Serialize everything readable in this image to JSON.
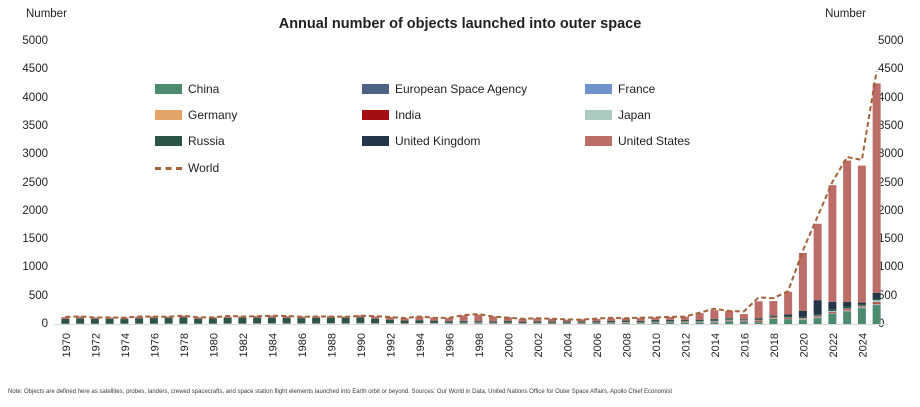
{
  "title": "Annual number of objects launched into outer space",
  "axis": {
    "left_label": "Number",
    "right_label": "Number"
  },
  "note": "Note: Objects are defined here as satellites, probes, landers, crewed spacecrafts, and space station flight elements launched into Earth orbit or beyond. Sources: Our World in Data, United Nations Office for Outer Space Affairs, Apollo Chief Economist",
  "chart_data": {
    "type": "bar",
    "stacked": true,
    "title": "Annual number of objects launched into outer space",
    "ylabel": "Number",
    "ylim": [
      0,
      5000
    ],
    "y_ticks": [
      0,
      500,
      1000,
      1500,
      2000,
      2500,
      3000,
      3500,
      4000,
      4500,
      5000
    ],
    "grid": false,
    "legend_position": "top",
    "x_tick_step": 2,
    "years": [
      1970,
      1971,
      1972,
      1973,
      1974,
      1975,
      1976,
      1977,
      1978,
      1979,
      1980,
      1981,
      1982,
      1983,
      1984,
      1985,
      1986,
      1987,
      1988,
      1989,
      1990,
      1991,
      1992,
      1993,
      1994,
      1995,
      1996,
      1997,
      1998,
      1999,
      2000,
      2001,
      2002,
      2003,
      2004,
      2005,
      2006,
      2007,
      2008,
      2009,
      2010,
      2011,
      2012,
      2013,
      2014,
      2015,
      2016,
      2017,
      2018,
      2019,
      2020,
      2021,
      2022,
      2023,
      2024,
      2025
    ],
    "series": [
      {
        "name": "China",
        "color": "#4d8b6f",
        "values": [
          0,
          1,
          0,
          0,
          0,
          2,
          1,
          2,
          1,
          0,
          0,
          2,
          1,
          2,
          3,
          1,
          2,
          2,
          4,
          1,
          5,
          1,
          2,
          1,
          2,
          3,
          4,
          6,
          6,
          4,
          5,
          3,
          5,
          8,
          8,
          6,
          10,
          10,
          15,
          8,
          20,
          20,
          25,
          20,
          25,
          45,
          35,
          30,
          90,
          80,
          70,
          105,
          180,
          220,
          280,
          330
        ]
      },
      {
        "name": "European Space Agency",
        "color": "#4e6285",
        "values": [
          0,
          0,
          0,
          0,
          0,
          0,
          0,
          0,
          0,
          1,
          1,
          1,
          1,
          2,
          1,
          1,
          1,
          1,
          2,
          2,
          2,
          2,
          2,
          2,
          2,
          3,
          2,
          2,
          3,
          3,
          3,
          2,
          2,
          2,
          2,
          2,
          2,
          2,
          3,
          3,
          3,
          3,
          3,
          3,
          4,
          4,
          3,
          3,
          4,
          4,
          4,
          5,
          5,
          5,
          5,
          8
        ]
      },
      {
        "name": "France",
        "color": "#7193cb",
        "values": [
          2,
          1,
          1,
          1,
          2,
          2,
          1,
          2,
          1,
          1,
          2,
          2,
          3,
          2,
          3,
          3,
          2,
          2,
          3,
          2,
          3,
          3,
          3,
          2,
          3,
          3,
          3,
          4,
          4,
          3,
          3,
          2,
          3,
          2,
          2,
          3,
          2,
          3,
          3,
          3,
          3,
          4,
          4,
          4,
          5,
          4,
          4,
          5,
          5,
          5,
          6,
          6,
          8,
          8,
          8,
          10
        ]
      },
      {
        "name": "Germany",
        "color": "#e3a468",
        "values": [
          1,
          1,
          1,
          1,
          2,
          1,
          2,
          1,
          2,
          1,
          1,
          2,
          1,
          2,
          2,
          2,
          2,
          2,
          2,
          2,
          2,
          2,
          3,
          2,
          3,
          3,
          2,
          3,
          3,
          3,
          3,
          2,
          2,
          2,
          2,
          3,
          2,
          3,
          3,
          3,
          3,
          3,
          4,
          4,
          5,
          4,
          4,
          5,
          6,
          6,
          10,
          10,
          10,
          10,
          10,
          12
        ]
      },
      {
        "name": "India",
        "color": "#a40e13",
        "values": [
          0,
          0,
          0,
          0,
          0,
          1,
          0,
          0,
          0,
          1,
          1,
          1,
          1,
          2,
          1,
          1,
          1,
          2,
          2,
          1,
          2,
          2,
          2,
          2,
          3,
          2,
          3,
          3,
          3,
          3,
          3,
          3,
          3,
          4,
          4,
          4,
          4,
          5,
          5,
          5,
          5,
          6,
          6,
          6,
          8,
          8,
          10,
          15,
          10,
          10,
          5,
          10,
          10,
          15,
          10,
          20
        ]
      },
      {
        "name": "Japan",
        "color": "#accbbe",
        "values": [
          1,
          2,
          2,
          1,
          2,
          2,
          2,
          3,
          3,
          2,
          3,
          3,
          3,
          3,
          4,
          3,
          4,
          4,
          4,
          4,
          5,
          4,
          4,
          4,
          5,
          5,
          5,
          6,
          6,
          5,
          5,
          4,
          5,
          4,
          4,
          5,
          5,
          5,
          6,
          6,
          6,
          6,
          6,
          8,
          8,
          10,
          8,
          8,
          10,
          10,
          10,
          10,
          15,
          15,
          10,
          40
        ]
      },
      {
        "name": "Russia",
        "color": "#2c5547",
        "values": [
          88,
          95,
          88,
          86,
          81,
          89,
          99,
          98,
          107,
          87,
          89,
          98,
          101,
          98,
          97,
          98,
          91,
          95,
          94,
          95,
          96,
          80,
          60,
          48,
          50,
          40,
          30,
          30,
          25,
          25,
          35,
          25,
          25,
          25,
          25,
          25,
          25,
          25,
          25,
          25,
          30,
          30,
          25,
          30,
          30,
          25,
          20,
          20,
          20,
          25,
          25,
          25,
          35,
          35,
          30,
          30
        ]
      },
      {
        "name": "United Kingdom",
        "color": "#243449",
        "values": [
          0,
          1,
          0,
          0,
          1,
          0,
          0,
          0,
          0,
          1,
          1,
          1,
          1,
          1,
          1,
          1,
          1,
          1,
          1,
          1,
          1,
          1,
          1,
          1,
          1,
          1,
          1,
          2,
          2,
          1,
          1,
          1,
          1,
          1,
          1,
          1,
          1,
          1,
          2,
          2,
          2,
          2,
          3,
          3,
          5,
          2,
          2,
          15,
          10,
          30,
          105,
          250,
          130,
          80,
          25,
          100
        ]
      },
      {
        "name": "United States",
        "color": "#bc6d68",
        "values": [
          30,
          32,
          25,
          25,
          25,
          30,
          28,
          25,
          32,
          25,
          20,
          20,
          22,
          30,
          35,
          30,
          25,
          25,
          25,
          25,
          35,
          40,
          45,
          40,
          60,
          55,
          55,
          95,
          115,
          85,
          60,
          50,
          55,
          45,
          30,
          35,
          40,
          45,
          40,
          55,
          45,
          50,
          55,
          115,
          155,
          130,
          90,
          300,
          250,
          400,
          1020,
          1350,
          2060,
          2500,
          2420,
          3700
        ]
      }
    ],
    "line_series": {
      "name": "World",
      "color": "#a1633a",
      "style": "dashed",
      "values": [
        125,
        135,
        115,
        116,
        111,
        132,
        131,
        127,
        146,
        116,
        117,
        141,
        132,
        136,
        146,
        142,
        128,
        132,
        133,
        125,
        145,
        140,
        124,
        105,
        133,
        110,
        107,
        157,
        175,
        130,
        113,
        92,
        101,
        92,
        80,
        77,
        96,
        110,
        100,
        111,
        115,
        125,
        130,
        200,
        270,
        230,
        220,
        470,
        455,
        580,
        1300,
        1900,
        2510,
        2950,
        2900,
        4470
      ]
    }
  }
}
